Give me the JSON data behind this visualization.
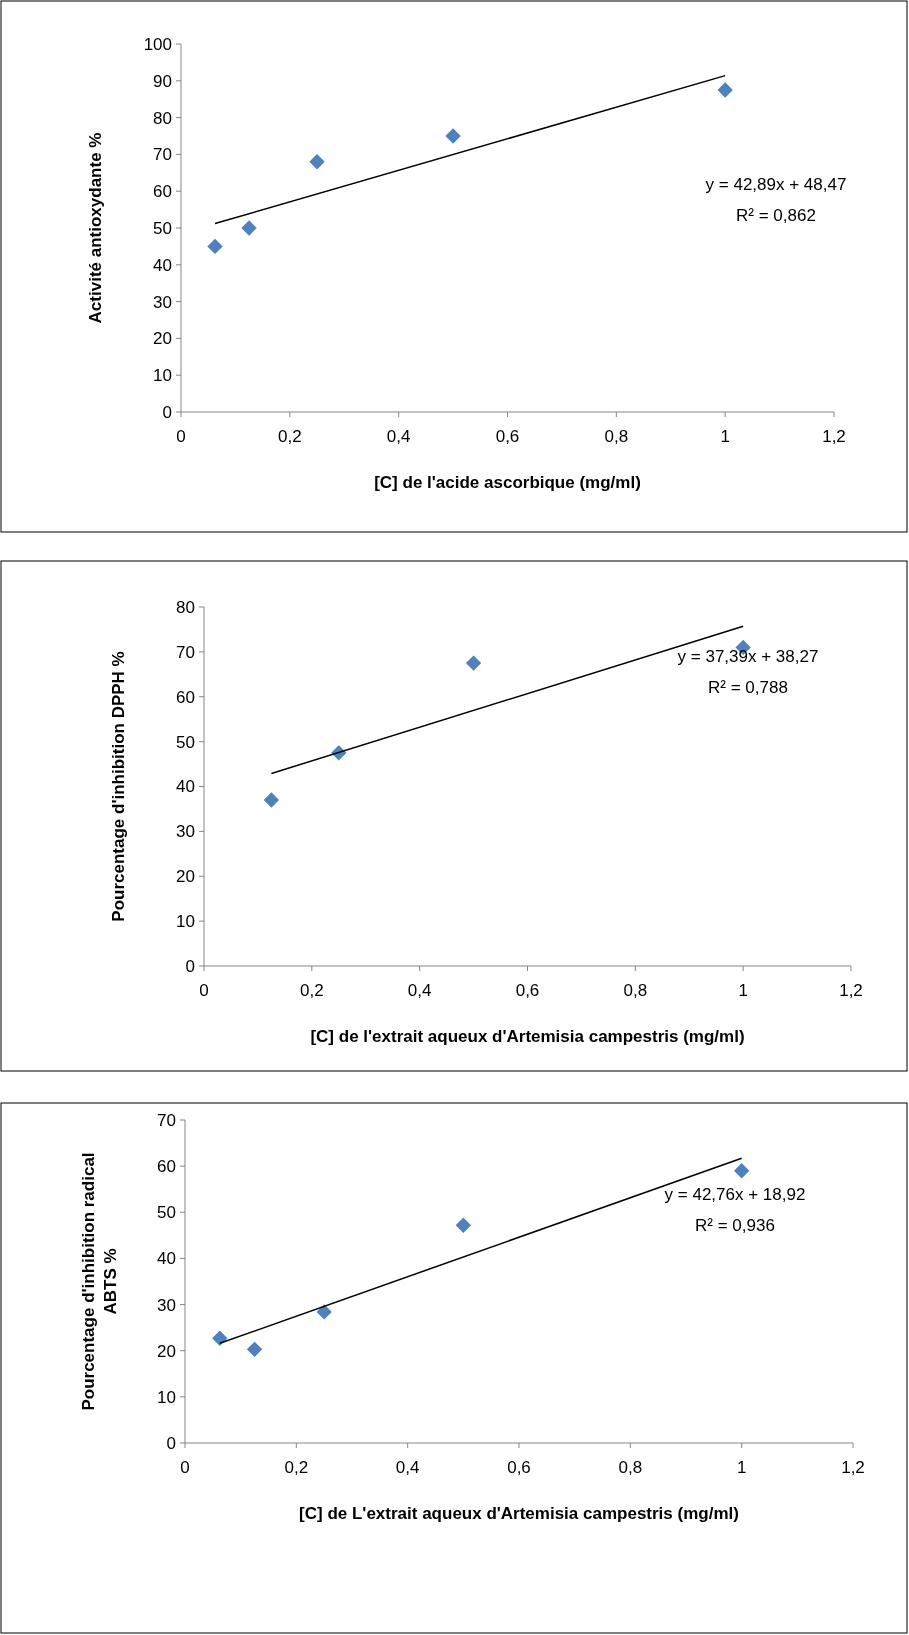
{
  "chart_data": [
    {
      "type": "scatter",
      "xlabel": "[C] de l'acide ascorbique (mg/ml)",
      "ylabel": "Activité antioxydante %",
      "xlim": [
        0,
        1.2
      ],
      "xticks": [
        {
          "value": 0,
          "label": "0"
        },
        {
          "value": 0.2,
          "label": "0,2"
        },
        {
          "value": 0.4,
          "label": "0,4"
        },
        {
          "value": 0.6,
          "label": "0,6"
        },
        {
          "value": 0.8,
          "label": "0,8"
        },
        {
          "value": 1,
          "label": "1"
        },
        {
          "value": 1.2,
          "label": "1,2"
        }
      ],
      "ylim": [
        0,
        100
      ],
      "yticks": [
        0,
        10,
        20,
        30,
        40,
        50,
        60,
        70,
        80,
        90,
        100
      ],
      "annotations": [
        "y = 42,89x + 48,47",
        "R² = 0,862"
      ],
      "series": [
        {
          "marker": "diamond",
          "color": "#4f81bd",
          "x": [
            0.0625,
            0.125,
            0.25,
            0.5,
            1
          ],
          "values": [
            45,
            50,
            68,
            75,
            87.5
          ]
        },
        {
          "type": "line",
          "color": "#000000",
          "x": [
            0.0625,
            1
          ],
          "values": [
            51.2,
            91.4
          ]
        }
      ]
    },
    {
      "type": "scatter",
      "xlabel": "[C] de l'extrait aqueux d'Artemisia campestris (mg/ml)",
      "ylabel": "Pourcentage d'inhibition DPPH %",
      "xlim": [
        0,
        1.2
      ],
      "xticks": [
        {
          "value": 0,
          "label": "0"
        },
        {
          "value": 0.2,
          "label": "0,2"
        },
        {
          "value": 0.4,
          "label": "0,4"
        },
        {
          "value": 0.6,
          "label": "0,6"
        },
        {
          "value": 0.8,
          "label": "0,8"
        },
        {
          "value": 1,
          "label": "1"
        },
        {
          "value": 1.2,
          "label": "1,2"
        }
      ],
      "ylim": [
        0,
        80
      ],
      "yticks": [
        0,
        10,
        20,
        30,
        40,
        50,
        60,
        70,
        80
      ],
      "annotations": [
        "y = 37,39x + 38,27",
        "R² = 0,788"
      ],
      "series": [
        {
          "marker": "diamond",
          "color": "#4f81bd",
          "x": [
            0.125,
            0.25,
            0.5,
            1
          ],
          "values": [
            37,
            47.5,
            67.5,
            71
          ]
        },
        {
          "type": "line",
          "color": "#000000",
          "x": [
            0.125,
            1
          ],
          "values": [
            42.9,
            75.7
          ]
        }
      ]
    },
    {
      "type": "scatter",
      "xlabel": "[C] de L'extrait aqueux d'Artemisia campestris (mg/ml)",
      "ylabel": "Pourcentage d'inhibition radical ABTS %",
      "xlim": [
        0,
        1.2
      ],
      "xticks": [
        {
          "value": 0,
          "label": "0"
        },
        {
          "value": 0.2,
          "label": "0,2"
        },
        {
          "value": 0.4,
          "label": "0,4"
        },
        {
          "value": 0.6,
          "label": "0,6"
        },
        {
          "value": 0.8,
          "label": "0,8"
        },
        {
          "value": 1,
          "label": "1"
        },
        {
          "value": 1.2,
          "label": "1,2"
        }
      ],
      "ylim": [
        0,
        70
      ],
      "yticks": [
        0,
        10,
        20,
        30,
        40,
        50,
        60,
        70
      ],
      "annotations": [
        "y = 42,76x + 18,92",
        "R² = 0,936"
      ],
      "series": [
        {
          "marker": "diamond",
          "color": "#4f81bd",
          "x": [
            0.0625,
            0.125,
            0.25,
            0.5,
            1
          ],
          "values": [
            22.7,
            20.3,
            28.4,
            47.2,
            59
          ]
        },
        {
          "type": "line",
          "color": "#000000",
          "x": [
            0.0625,
            1
          ],
          "values": [
            21.6,
            61.7
          ]
        }
      ]
    }
  ]
}
